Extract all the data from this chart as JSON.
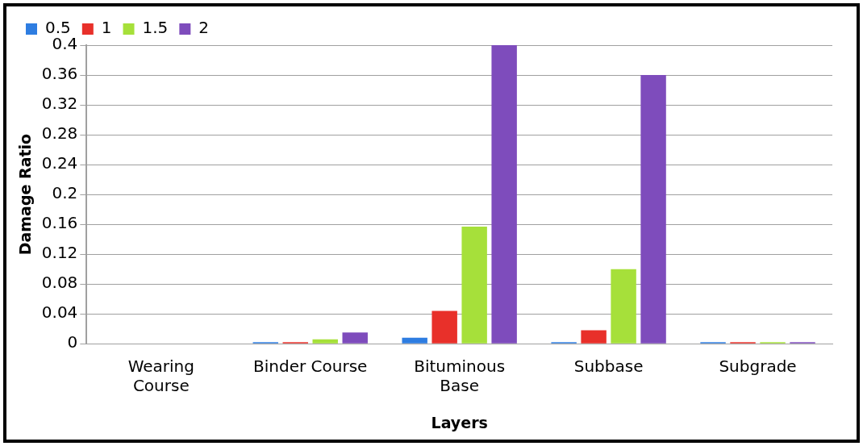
{
  "chart_data": {
    "type": "bar",
    "xlabel": "Layers",
    "ylabel": "Damage Ratio",
    "categories": [
      "Wearing Course",
      "Binder Course",
      "Bituminous Base",
      "Subbase",
      "Subgrade"
    ],
    "series": [
      {
        "name": "0.5",
        "color": "#2e7de1",
        "values": [
          0,
          0.002,
          0.008,
          0.002,
          0.002
        ]
      },
      {
        "name": "1",
        "color": "#e8302a",
        "values": [
          0,
          0.002,
          0.044,
          0.018,
          0.002
        ]
      },
      {
        "name": "1.5",
        "color": "#a6e03a",
        "values": [
          0,
          0.006,
          0.157,
          0.1,
          0.002
        ]
      },
      {
        "name": "2",
        "color": "#7e4cbc",
        "values": [
          0,
          0.015,
          0.4,
          0.36,
          0.002
        ]
      }
    ],
    "ylim": [
      0,
      0.4
    ],
    "yticks": [
      0,
      0.04,
      0.08,
      0.12,
      0.16,
      0.2,
      0.24,
      0.28,
      0.32,
      0.36,
      0.4
    ],
    "grid": "y",
    "legend": "top left"
  }
}
